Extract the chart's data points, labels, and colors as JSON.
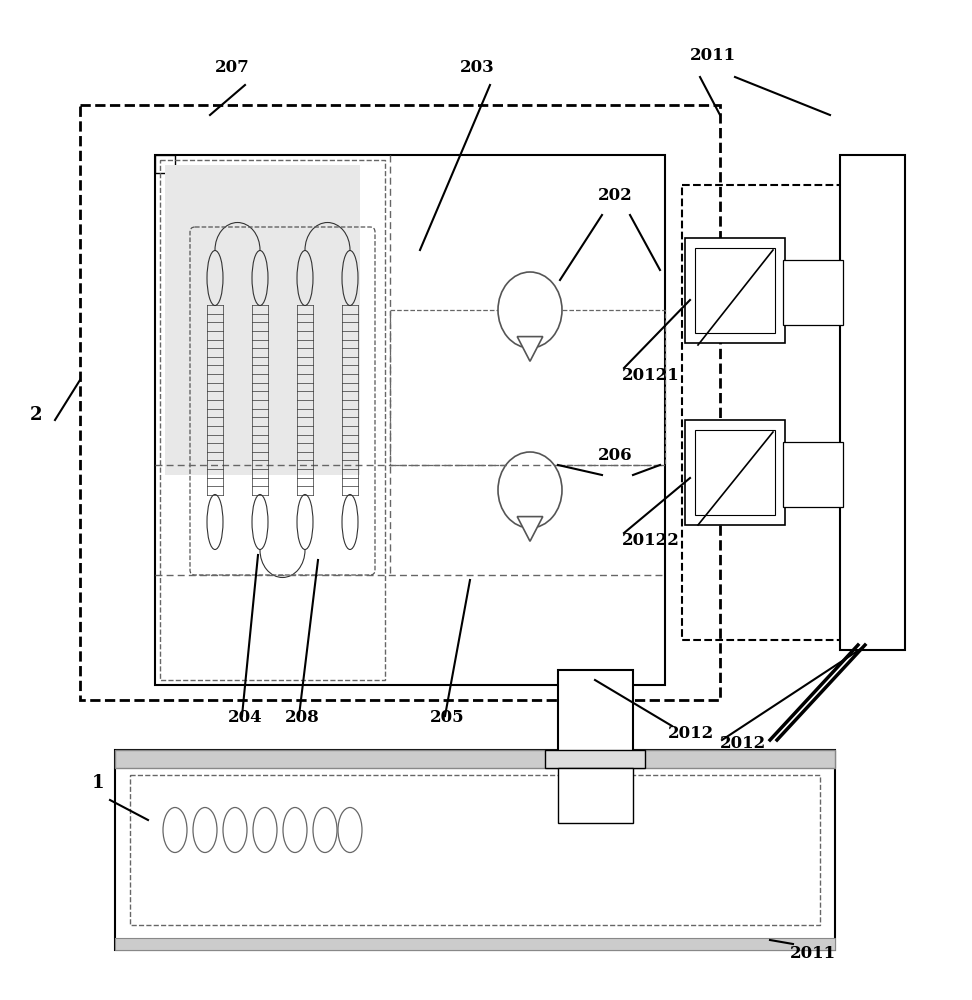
{
  "bg_color": "#ffffff",
  "line_color": "#000000",
  "gray_fill": "#e8e8e8"
}
